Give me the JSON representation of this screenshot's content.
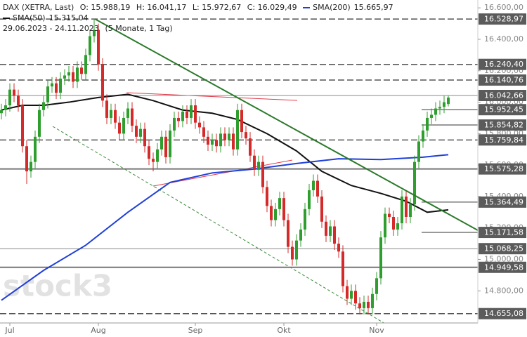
{
  "header": {
    "symbol": "DAX (XETRA, Last)",
    "open": "O: 15.988,19",
    "high": "H: 16.041,17",
    "low": "L: 15.972,67",
    "close": "C: 16.029,49",
    "period": "29.06.2023 - 24.11.2023",
    "resolution": "(5 Monate, 1 Tag)"
  },
  "watermark": "stock3",
  "chart_data": {
    "type": "candlestick",
    "up_color": "#2e9e2e",
    "down_color": "#d42a2a",
    "categories": [
      null,
      null,
      "Jul",
      null,
      null,
      null,
      null,
      null,
      null,
      null,
      null,
      null,
      null,
      null,
      null,
      null,
      null,
      null,
      null,
      null,
      null,
      null,
      null,
      "Aug",
      null,
      null,
      null,
      null,
      null,
      null,
      null,
      null,
      null,
      null,
      null,
      null,
      null,
      null,
      null,
      null,
      null,
      null,
      null,
      null,
      null,
      null,
      "Sep",
      null,
      null,
      null,
      null,
      null,
      null,
      null,
      null,
      null,
      null,
      null,
      null,
      null,
      null,
      null,
      null,
      null,
      null,
      null,
      null,
      "Okt",
      null,
      null,
      null,
      null,
      null,
      null,
      null,
      null,
      null,
      null,
      null,
      null,
      null,
      null,
      null,
      null,
      null,
      null,
      null,
      null,
      null,
      "Nov",
      null,
      null,
      null,
      null,
      null,
      null,
      null,
      null,
      null,
      null,
      null,
      null,
      null,
      null,
      null,
      null,
      null
    ],
    "open": [
      15930,
      15950,
      15980,
      16080,
      16040,
      15980,
      15720,
      15560,
      15620,
      15780,
      15950,
      16000,
      16100,
      16120,
      16060,
      16150,
      16170,
      16190,
      16130,
      16220,
      16180,
      16300,
      16420,
      16460,
      16240,
      16010,
      15900,
      15950,
      15870,
      15800,
      15900,
      15960,
      15850,
      15780,
      15830,
      15720,
      15640,
      15620,
      15700,
      15780,
      15650,
      15820,
      15900,
      15880,
      15940,
      15900,
      15980,
      15870,
      15840,
      15780,
      15730,
      15760,
      15720,
      15800,
      15760,
      15800,
      15700,
      15950,
      15810,
      15770,
      15660,
      15570,
      15620,
      15460,
      15340,
      15250,
      15320,
      15390,
      15250,
      15080,
      15000,
      15120,
      15190,
      15320,
      15440,
      15500,
      15400,
      15240,
      15150,
      15210,
      15100,
      15050,
      14830,
      14750,
      14800,
      14720,
      14690,
      14730,
      14690,
      14780,
      14880,
      15140,
      15290,
      15270,
      15190,
      15230,
      15400,
      15270,
      15350,
      15620,
      15750,
      15820,
      15900,
      15920,
      15960,
      15970,
      15988.19
    ],
    "high": [
      15990,
      16020,
      16120,
      16120,
      16080,
      16020,
      15760,
      15660,
      15820,
      15990,
      16040,
      16140,
      16160,
      16160,
      16190,
      16210,
      16230,
      16230,
      16260,
      16260,
      16340,
      16460,
      16530,
      16500,
      16280,
      16050,
      15990,
      15990,
      15910,
      15940,
      16000,
      16000,
      15890,
      15870,
      15870,
      15760,
      15680,
      15740,
      15820,
      15820,
      15860,
      15940,
      15940,
      15980,
      15980,
      16020,
      16020,
      15910,
      15880,
      15820,
      15800,
      15800,
      15840,
      15840,
      15840,
      15840,
      15990,
      15990,
      15850,
      15810,
      15700,
      15660,
      15660,
      15500,
      15380,
      15360,
      15430,
      15430,
      15290,
      15120,
      15160,
      15230,
      15360,
      15480,
      15540,
      15540,
      15440,
      15280,
      15250,
      15250,
      15140,
      15090,
      14870,
      14840,
      14840,
      14760,
      14770,
      14770,
      14820,
      14920,
      15180,
      15330,
      15330,
      15310,
      15270,
      15440,
      15440,
      15390,
      15660,
      15790,
      15860,
      15940,
      15960,
      16000,
      16010,
      16040,
      16041.17
    ],
    "low": [
      15890,
      15910,
      15940,
      16000,
      15940,
      15680,
      15480,
      15520,
      15580,
      15740,
      15910,
      15960,
      16060,
      16020,
      16020,
      16110,
      16130,
      16090,
      16090,
      16140,
      16140,
      16260,
      16380,
      16200,
      15970,
      15860,
      15860,
      15830,
      15760,
      15760,
      15860,
      15810,
      15740,
      15740,
      15680,
      15600,
      15560,
      15580,
      15660,
      15610,
      15610,
      15780,
      15840,
      15840,
      15860,
      15860,
      15830,
      15800,
      15740,
      15690,
      15690,
      15680,
      15680,
      15720,
      15720,
      15660,
      15660,
      15770,
      15730,
      15620,
      15530,
      15530,
      15420,
      15300,
      15210,
      15210,
      15280,
      15210,
      15040,
      14960,
      14960,
      15080,
      15150,
      15280,
      15400,
      15360,
      15200,
      15110,
      15110,
      15060,
      15010,
      14790,
      14710,
      14710,
      14680,
      14650,
      14650,
      14650,
      14650,
      14740,
      14840,
      15100,
      15230,
      15150,
      15150,
      15190,
      15230,
      15230,
      15310,
      15580,
      15710,
      15780,
      15860,
      15880,
      15920,
      15930,
      15972.67
    ],
    "close": [
      15950,
      15980,
      16080,
      16040,
      15980,
      15720,
      15560,
      15620,
      15780,
      15950,
      16000,
      16100,
      16120,
      16060,
      16150,
      16170,
      16190,
      16130,
      16220,
      16180,
      16300,
      16420,
      16460,
      16240,
      16010,
      15900,
      15950,
      15870,
      15800,
      15900,
      15960,
      15850,
      15780,
      15830,
      15720,
      15640,
      15620,
      15700,
      15780,
      15650,
      15820,
      15900,
      15880,
      15940,
      15900,
      15980,
      15870,
      15840,
      15780,
      15730,
      15760,
      15720,
      15800,
      15760,
      15800,
      15700,
      15950,
      15810,
      15770,
      15660,
      15570,
      15620,
      15460,
      15340,
      15250,
      15320,
      15390,
      15250,
      15080,
      15000,
      15120,
      15190,
      15320,
      15440,
      15500,
      15400,
      15240,
      15150,
      15210,
      15100,
      15050,
      14830,
      14750,
      14800,
      14720,
      14690,
      14730,
      14690,
      14780,
      14880,
      15140,
      15290,
      15270,
      15190,
      15230,
      15400,
      15270,
      15350,
      15620,
      15750,
      15820,
      15900,
      15920,
      15960,
      15970,
      16000,
      16029.49
    ],
    "series": [
      {
        "name": "SMA(50)",
        "last_label": "15.315,04",
        "color": "#111111",
        "x": [
          0,
          5,
          10,
          16,
          23,
          30,
          36,
          43,
          50,
          56,
          63,
          70,
          76,
          83,
          90,
          96,
          101,
          106
        ],
        "values": [
          15950,
          15980,
          15980,
          16000,
          16030,
          16050,
          16010,
          15950,
          15930,
          15890,
          15800,
          15690,
          15560,
          15470,
          15420,
          15370,
          15300,
          15315.04
        ]
      },
      {
        "name": "SMA(200)",
        "last_label": "15.665,97",
        "color": "#1f3fd8",
        "x": [
          0,
          10,
          20,
          30,
          40,
          50,
          60,
          70,
          80,
          90,
          100,
          106
        ],
        "values": [
          14740,
          14930,
          15090,
          15300,
          15490,
          15550,
          15575,
          15610,
          15640,
          15635,
          15650,
          15665.97
        ]
      }
    ],
    "ylim": [
      14560,
      16650
    ],
    "yticks": [
      {
        "value": 14800,
        "label": "14.800,00"
      },
      {
        "value": 15000,
        "label": "15.000,00"
      },
      {
        "value": 15200,
        "label": "15.200,00"
      },
      {
        "value": 15400,
        "label": "15.400,00"
      },
      {
        "value": 15600,
        "label": "15.600,00"
      },
      {
        "value": 15800,
        "label": "15.800,00"
      },
      {
        "value": 16000,
        "label": "16.000,00"
      },
      {
        "value": 16200,
        "label": "16.200,00"
      },
      {
        "value": 16400,
        "label": "16.400,00"
      },
      {
        "value": 16600,
        "label": "16.600,00"
      }
    ],
    "levels": [
      {
        "value": 16528.97,
        "label": "16.528,97",
        "style": "dashed"
      },
      {
        "value": 16240.4,
        "label": "16.240,40",
        "style": "dashed"
      },
      {
        "value": 16140.76,
        "label": "16.140,76",
        "style": "dashed"
      },
      {
        "value": 16042.66,
        "label": "16.042,66",
        "style": "solid"
      },
      {
        "value": 15952.45,
        "label": "15.952,45",
        "style": "marker"
      },
      {
        "value": 15854.82,
        "label": "15.854,82",
        "style": "marker"
      },
      {
        "value": 15759.84,
        "label": "15.759,84",
        "style": "dashed"
      },
      {
        "value": 15575.28,
        "label": "15.575,28",
        "style": "thick"
      },
      {
        "value": 15364.49,
        "label": "15.364,49",
        "style": "marker"
      },
      {
        "value": 15171.58,
        "label": "15.171,58",
        "style": "marker"
      },
      {
        "value": 15068.25,
        "label": "15.068,25",
        "style": "solid"
      },
      {
        "value": 14949.58,
        "label": "14.949,58",
        "style": "thick"
      },
      {
        "value": 14655.08,
        "label": "14.655,08",
        "style": "dashed"
      }
    ]
  }
}
